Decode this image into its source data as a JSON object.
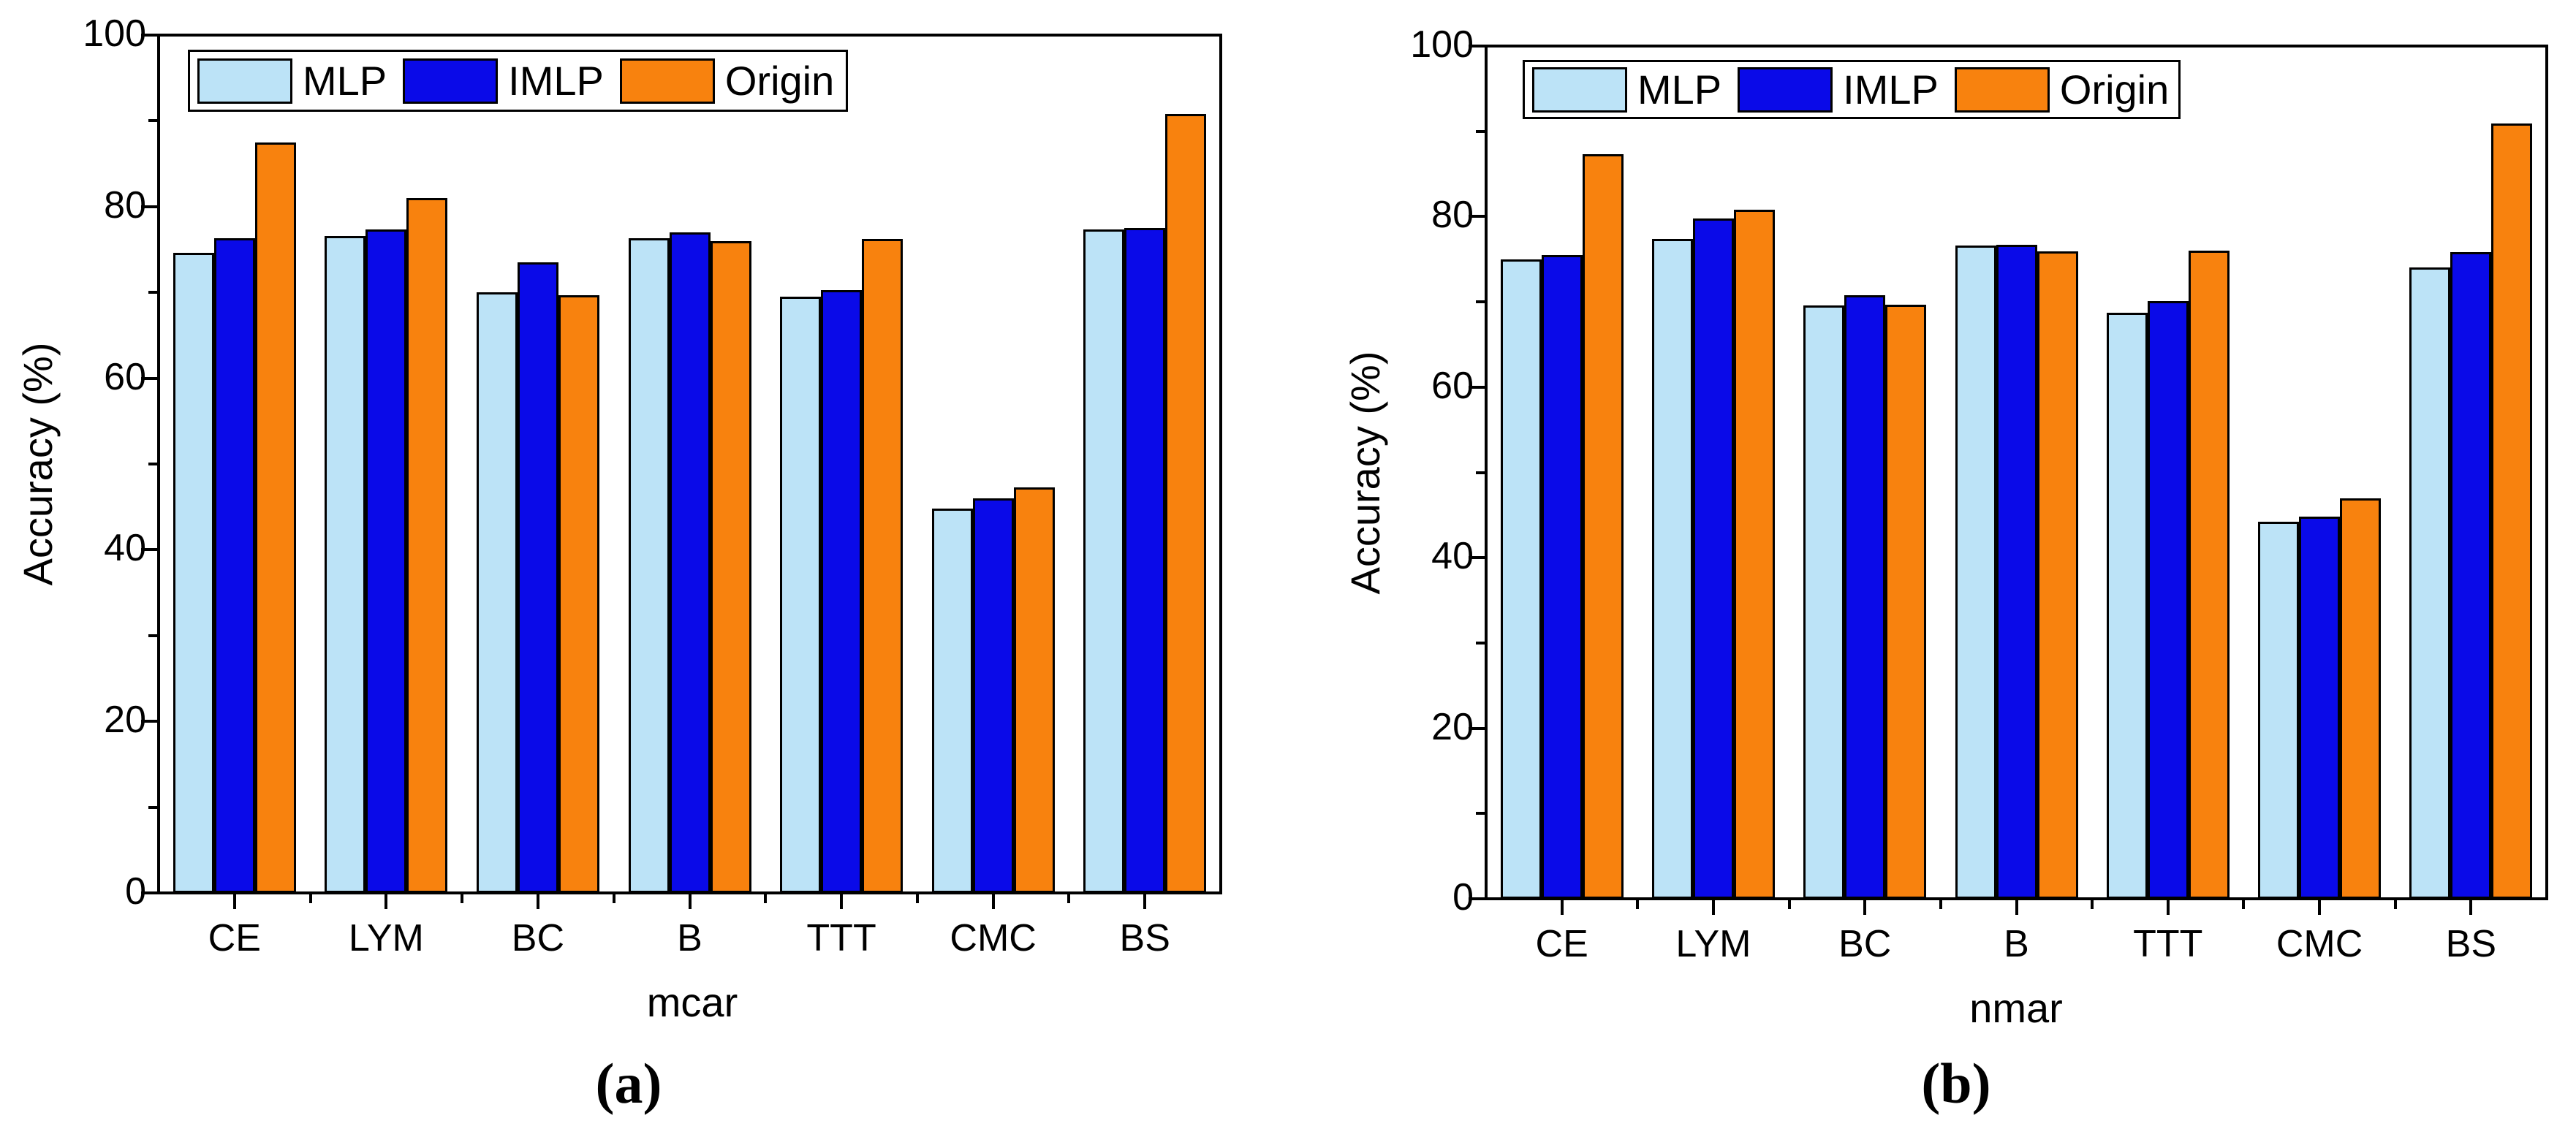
{
  "figure": {
    "background": "#ffffff",
    "type_note": "grouped bar chart figure with two panels"
  },
  "colors": {
    "mlp": "#BCE3F7",
    "imlp": "#0A0AE8",
    "origin": "#F8820E",
    "axis": "#000000",
    "legend_bg": "#FFFFFF"
  },
  "legend": {
    "items": [
      {
        "label": "MLP",
        "color_key": "mlp"
      },
      {
        "label": "IMLP",
        "color_key": "imlp"
      },
      {
        "label": "Origin",
        "color_key": "origin"
      }
    ]
  },
  "chart_data": [
    {
      "id": "a",
      "type": "bar",
      "title": "",
      "caption": "(a)",
      "xlabel": "mcar",
      "ylabel": "Accuracy (%)",
      "ylim": [
        0,
        100
      ],
      "yticks": [
        0,
        20,
        40,
        60,
        80,
        100
      ],
      "yminorticks": [
        10,
        30,
        50,
        70,
        90
      ],
      "grid": false,
      "legend_position": "top-left",
      "categories": [
        "CE",
        "LYM",
        "BC",
        "B",
        "TTT",
        "CMC",
        "BS"
      ],
      "series": [
        {
          "name": "MLP",
          "color_key": "mlp",
          "values": [
            74.6,
            76.6,
            70.0,
            76.3,
            69.5,
            44.8,
            77.3
          ]
        },
        {
          "name": "IMLP",
          "color_key": "imlp",
          "values": [
            76.3,
            77.3,
            73.5,
            77.0,
            70.3,
            46.0,
            77.5
          ]
        },
        {
          "name": "Origin",
          "color_key": "origin",
          "values": [
            87.5,
            81.0,
            69.7,
            76.0,
            76.2,
            47.3,
            90.8
          ]
        }
      ]
    },
    {
      "id": "b",
      "type": "bar",
      "title": "",
      "caption": "(b)",
      "xlabel": "nmar",
      "ylabel": "Accuracy (%)",
      "ylim": [
        0,
        100
      ],
      "yticks": [
        0,
        20,
        40,
        60,
        80,
        100
      ],
      "yminorticks": [
        10,
        30,
        50,
        70,
        90
      ],
      "grid": false,
      "legend_position": "top-left",
      "categories": [
        "CE",
        "LYM",
        "BC",
        "B",
        "TTT",
        "CMC",
        "BS"
      ],
      "series": [
        {
          "name": "MLP",
          "color_key": "mlp",
          "values": [
            75.0,
            77.4,
            69.6,
            76.6,
            68.7,
            44.2,
            74.0
          ]
        },
        {
          "name": "IMLP",
          "color_key": "imlp",
          "values": [
            75.5,
            79.8,
            70.8,
            76.7,
            70.1,
            44.8,
            75.8
          ]
        },
        {
          "name": "Origin",
          "color_key": "origin",
          "values": [
            87.3,
            80.8,
            69.7,
            75.9,
            76.0,
            47.0,
            90.9
          ]
        }
      ]
    }
  ]
}
